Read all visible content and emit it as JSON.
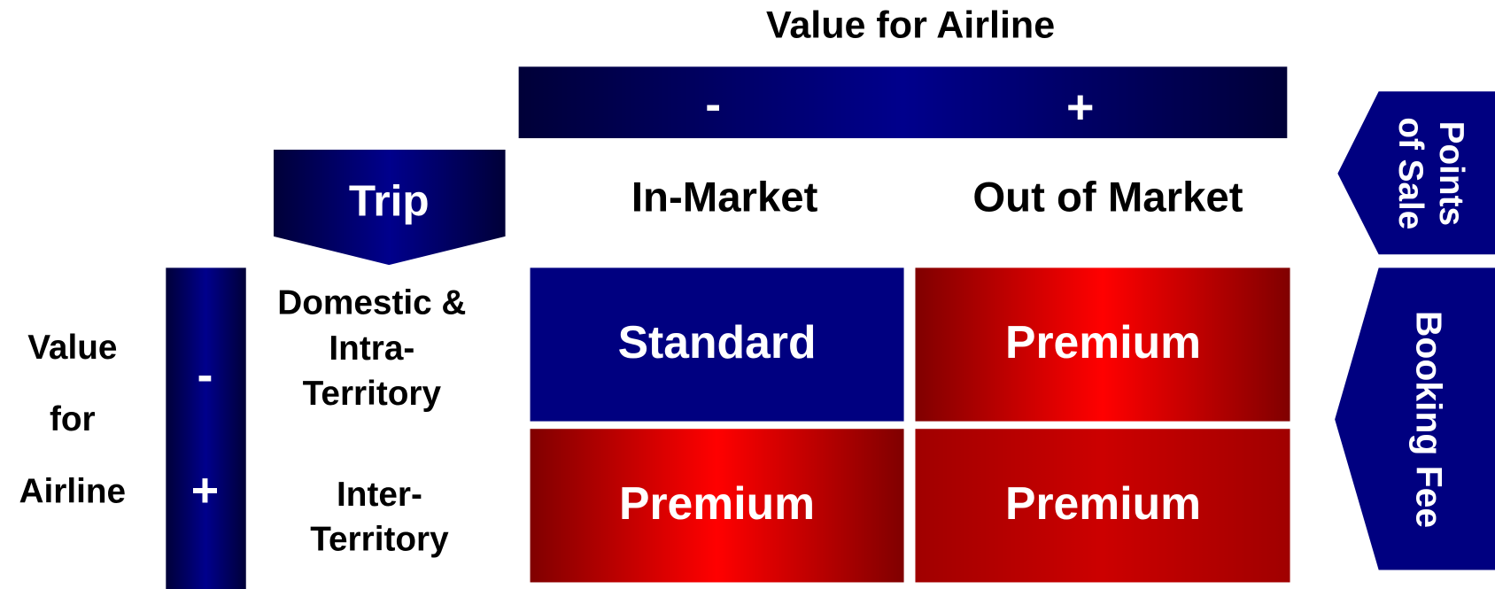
{
  "top_axis": {
    "title": "Value for Airline",
    "minus": "-",
    "plus": "+"
  },
  "trip_label": "Trip",
  "columns": [
    "In-Market",
    "Out of Market"
  ],
  "left_axis": {
    "title_lines": [
      "Value",
      "for",
      "Airline"
    ],
    "minus": "-",
    "plus": "+"
  },
  "rows": [
    {
      "label_lines": [
        "Domestic &",
        "Intra-",
        "Territory"
      ],
      "cells": [
        "Standard",
        "Premium"
      ]
    },
    {
      "label_lines": [
        "Inter-",
        "Territory"
      ],
      "cells": [
        "Premium",
        "Premium"
      ]
    }
  ],
  "side_labels": {
    "points_of_sale_lines": [
      "Points",
      "of Sale"
    ],
    "booking_fee": "Booking Fee"
  }
}
